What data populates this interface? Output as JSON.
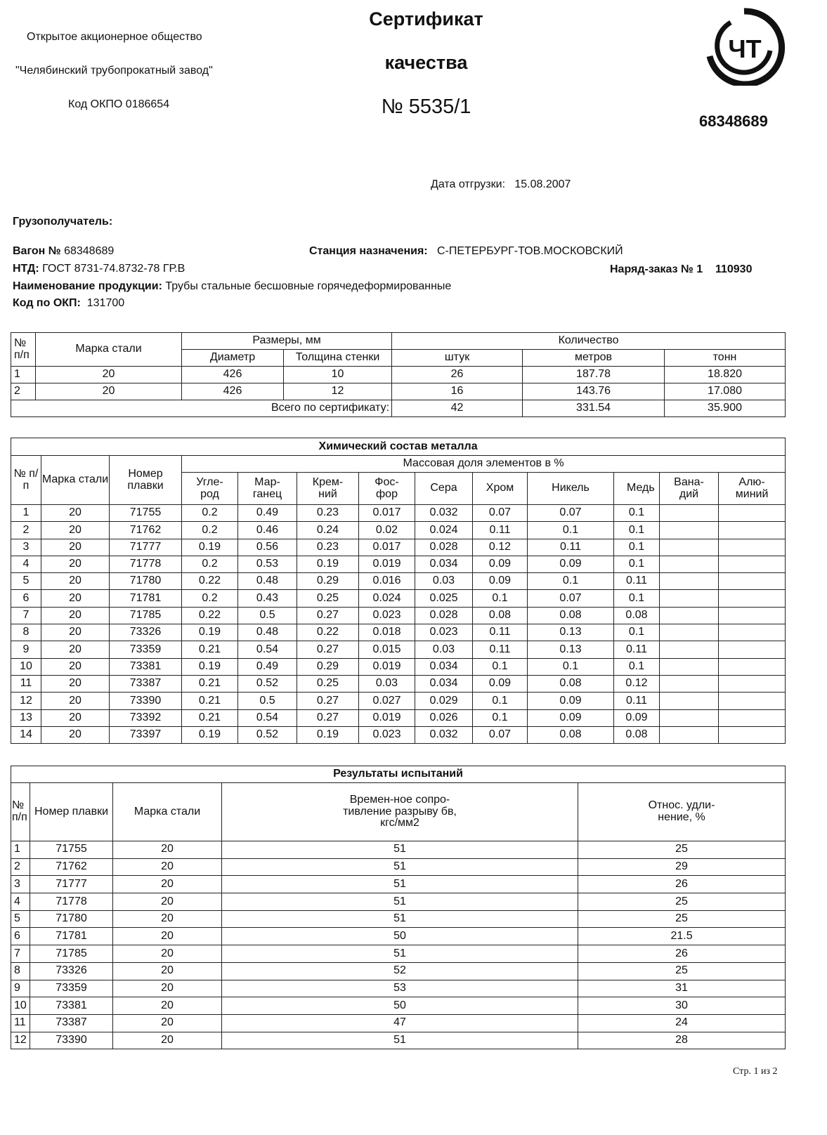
{
  "header": {
    "company_line1": "Открытое акционерное общество",
    "company_line2": "\"Челябинский трубопрокатный завод\"",
    "okpo": "Код ОКПО 0186654",
    "title1": "Сертификат",
    "title2": "качества",
    "number": "№ 5535/1",
    "logo_text": "ЧТ",
    "wagon_number_big": "68348689"
  },
  "info": {
    "ship_date_label": "Дата отгрузки:",
    "ship_date": "15.08.2007",
    "consignee_label": "Грузополучатель:",
    "wagon_label": "Вагон №",
    "wagon": "68348689",
    "station_label": "Станция назначения:",
    "station": "С-ПЕТЕРБУРГ-ТОВ.МОСКОВСКИЙ",
    "ntd_label": "НТД:",
    "ntd": "ГОСТ 8731-74.8732-78 ГР.В",
    "order_label": "Наряд-заказ №",
    "order_num": "1",
    "order_code": "110930",
    "product_label": "Наименование продукции:",
    "product": "Трубы стальные бесшовные горячедеформированные",
    "okp_label": "Код по ОКП:",
    "okp": "131700"
  },
  "quantity_table": {
    "h_num": "№ п/п",
    "h_grade": "Марка стали",
    "h_sizes": "Размеры, мм",
    "h_diameter": "Диаметр",
    "h_wall": "Толщина стенки",
    "h_qty": "Количество",
    "h_pcs": "штук",
    "h_m": "метров",
    "h_t": "тонн",
    "rows": [
      [
        "1",
        "20",
        "426",
        "10",
        "26",
        "187.78",
        "18.820"
      ],
      [
        "2",
        "20",
        "426",
        "12",
        "16",
        "143.76",
        "17.080"
      ]
    ],
    "total_label": "Всего по сертификату:",
    "total": [
      "42",
      "331.54",
      "35.900"
    ]
  },
  "chem_table": {
    "title": "Химический состав металла",
    "h_num": "№ п/п",
    "h_grade": "Марка стали",
    "h_heat": "Номер плавки",
    "h_mass": "Массовая доля элементов в %",
    "elements": [
      "Угле-род",
      "Мар-ганец",
      "Крем-ний",
      "Фос-фор",
      "Сера",
      "Хром",
      "Никель",
      "Медь",
      "Вана-дий",
      "Алю-миний"
    ],
    "rows": [
      [
        "1",
        "20",
        "71755",
        "0.2",
        "0.49",
        "0.23",
        "0.017",
        "0.032",
        "0.07",
        "0.07",
        "0.1",
        "",
        ""
      ],
      [
        "2",
        "20",
        "71762",
        "0.2",
        "0.46",
        "0.24",
        "0.02",
        "0.024",
        "0.11",
        "0.1",
        "0.1",
        "",
        ""
      ],
      [
        "3",
        "20",
        "71777",
        "0.19",
        "0.56",
        "0.23",
        "0.017",
        "0.028",
        "0.12",
        "0.11",
        "0.1",
        "",
        ""
      ],
      [
        "4",
        "20",
        "71778",
        "0.2",
        "0.53",
        "0.19",
        "0.019",
        "0.034",
        "0.09",
        "0.09",
        "0.1",
        "",
        ""
      ],
      [
        "5",
        "20",
        "71780",
        "0.22",
        "0.48",
        "0.29",
        "0.016",
        "0.03",
        "0.09",
        "0.1",
        "0.11",
        "",
        ""
      ],
      [
        "6",
        "20",
        "71781",
        "0.2",
        "0.43",
        "0.25",
        "0.024",
        "0.025",
        "0.1",
        "0.07",
        "0.1",
        "",
        ""
      ],
      [
        "7",
        "20",
        "71785",
        "0.22",
        "0.5",
        "0.27",
        "0.023",
        "0.028",
        "0.08",
        "0.08",
        "0.08",
        "",
        ""
      ],
      [
        "8",
        "20",
        "73326",
        "0.19",
        "0.48",
        "0.22",
        "0.018",
        "0.023",
        "0.11",
        "0.13",
        "0.1",
        "",
        ""
      ],
      [
        "9",
        "20",
        "73359",
        "0.21",
        "0.54",
        "0.27",
        "0.015",
        "0.03",
        "0.11",
        "0.13",
        "0.11",
        "",
        ""
      ],
      [
        "10",
        "20",
        "73381",
        "0.19",
        "0.49",
        "0.29",
        "0.019",
        "0.034",
        "0.1",
        "0.1",
        "0.1",
        "",
        ""
      ],
      [
        "11",
        "20",
        "73387",
        "0.21",
        "0.52",
        "0.25",
        "0.03",
        "0.034",
        "0.09",
        "0.08",
        "0.12",
        "",
        ""
      ],
      [
        "12",
        "20",
        "73390",
        "0.21",
        "0.5",
        "0.27",
        "0.027",
        "0.029",
        "0.1",
        "0.09",
        "0.11",
        "",
        ""
      ],
      [
        "13",
        "20",
        "73392",
        "0.21",
        "0.54",
        "0.27",
        "0.019",
        "0.026",
        "0.1",
        "0.09",
        "0.09",
        "",
        ""
      ],
      [
        "14",
        "20",
        "73397",
        "0.19",
        "0.52",
        "0.19",
        "0.023",
        "0.032",
        "0.07",
        "0.08",
        "0.08",
        "",
        ""
      ]
    ]
  },
  "test_table": {
    "title": "Результаты испытаний",
    "h_num": "№ п/п",
    "h_heat": "Номер плавки",
    "h_grade": "Марка стали",
    "h_strength": "Времен-ное сопро-тивление разрыву бв, кгс/мм2",
    "h_elong": "Относ. удли-нение, %",
    "rows": [
      [
        "1",
        "71755",
        "20",
        "51",
        "25"
      ],
      [
        "2",
        "71762",
        "20",
        "51",
        "29"
      ],
      [
        "3",
        "71777",
        "20",
        "51",
        "26"
      ],
      [
        "4",
        "71778",
        "20",
        "51",
        "25"
      ],
      [
        "5",
        "71780",
        "20",
        "51",
        "25"
      ],
      [
        "6",
        "71781",
        "20",
        "50",
        "21.5"
      ],
      [
        "7",
        "71785",
        "20",
        "51",
        "26"
      ],
      [
        "8",
        "73326",
        "20",
        "52",
        "25"
      ],
      [
        "9",
        "73359",
        "20",
        "53",
        "31"
      ],
      [
        "10",
        "73381",
        "20",
        "50",
        "30"
      ],
      [
        "11",
        "73387",
        "20",
        "47",
        "24"
      ],
      [
        "12",
        "73390",
        "20",
        "51",
        "28"
      ]
    ]
  },
  "footer": {
    "page": "Стр. 1 из 2"
  }
}
